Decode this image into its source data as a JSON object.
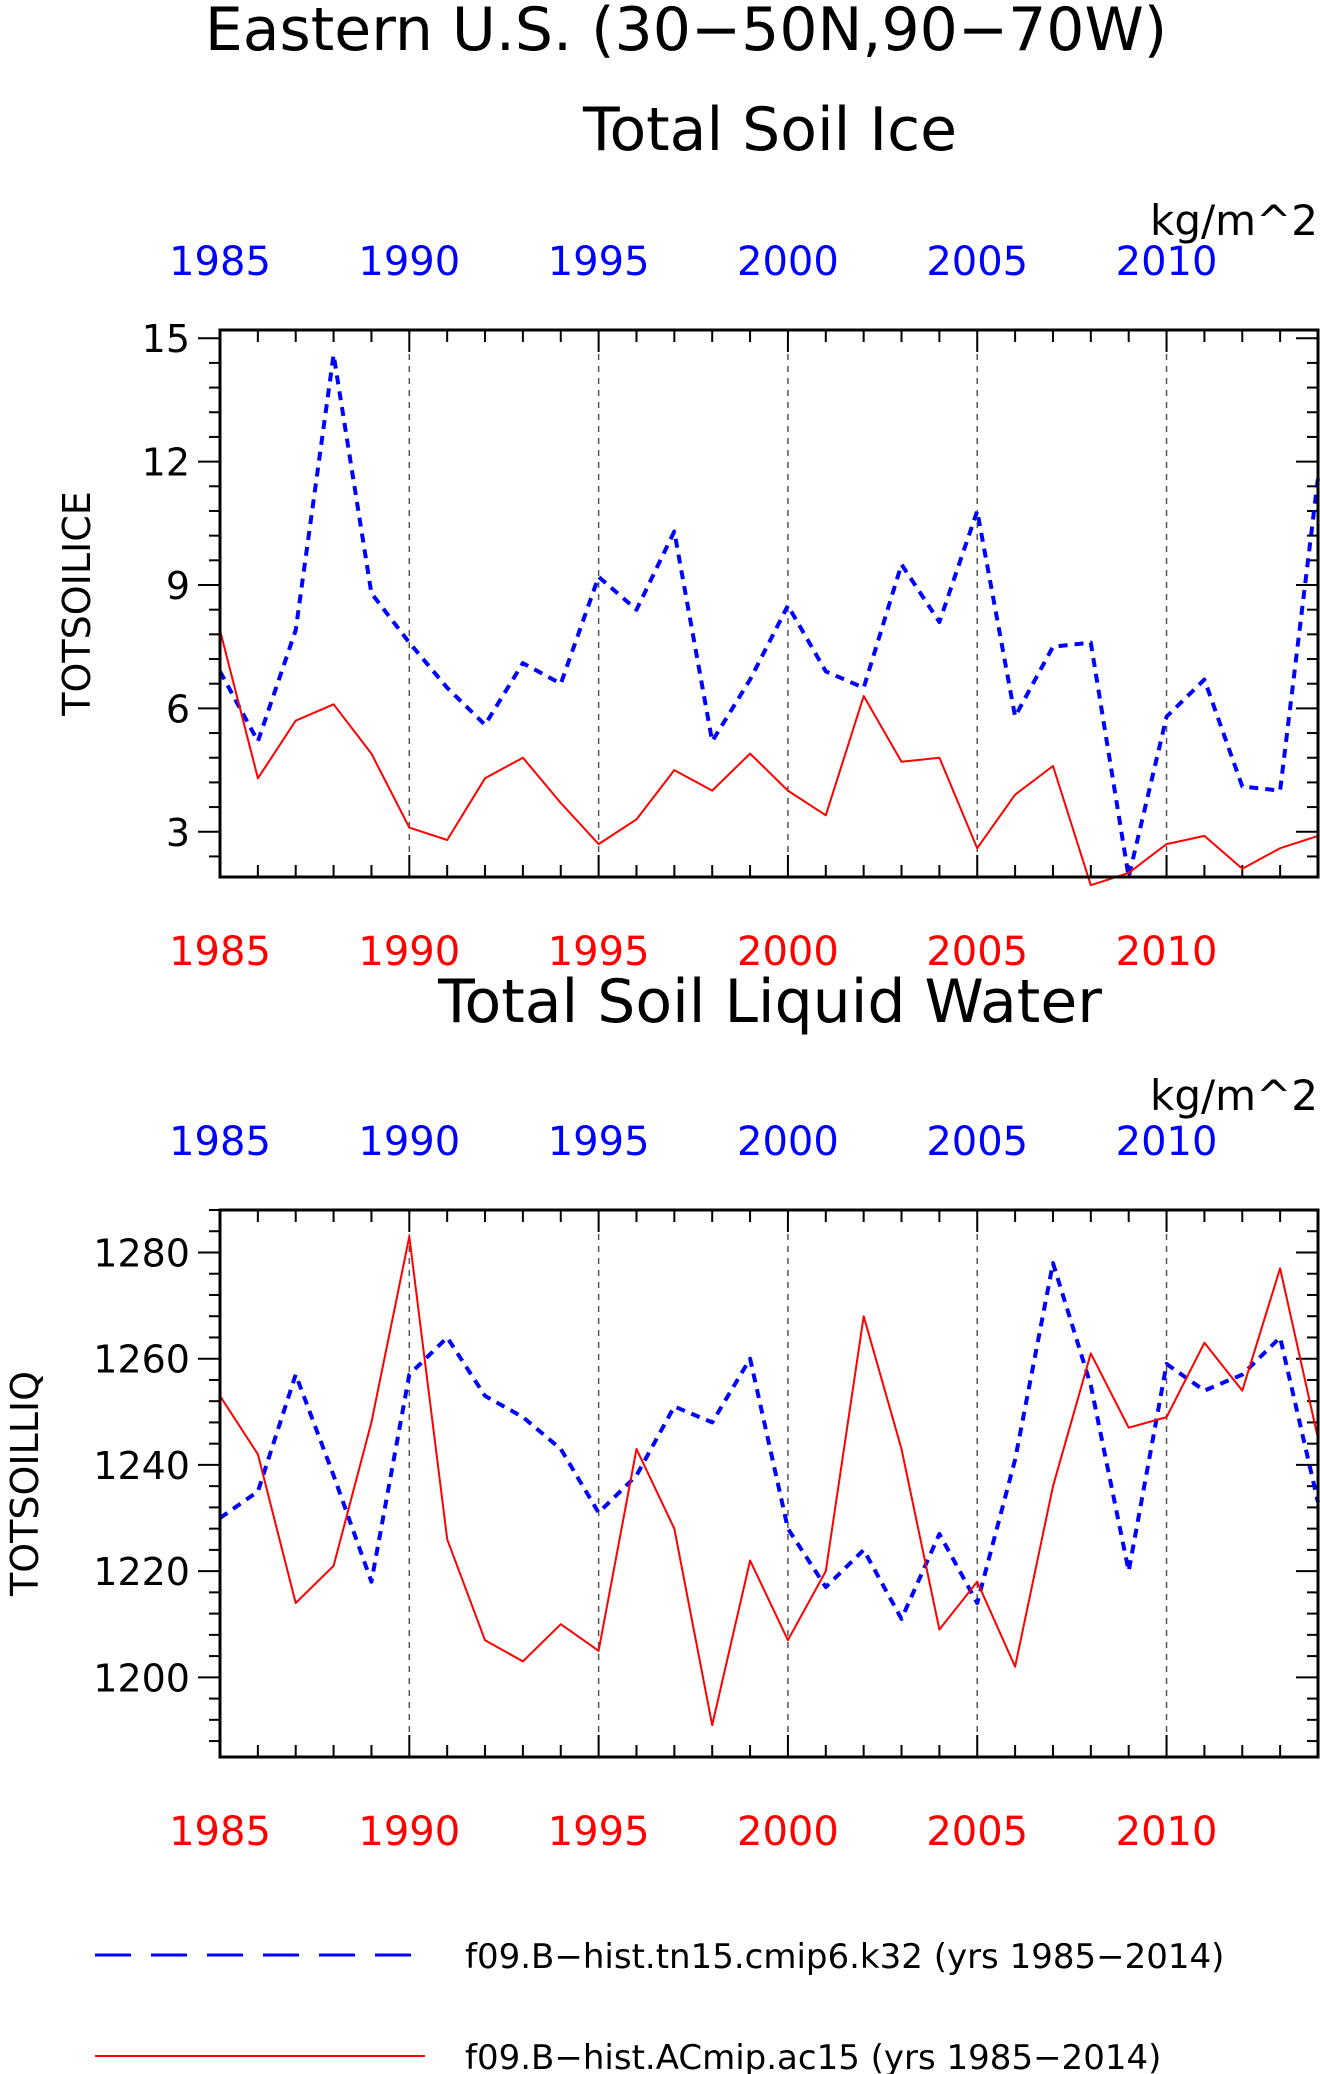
{
  "page": {
    "title": "Eastern U.S. (30−50N,90−70W)"
  },
  "colors": {
    "series_a": "#0000ff",
    "series_b": "#ff0000",
    "axis": "#000000",
    "grid": "#555555"
  },
  "legend": {
    "items": [
      {
        "label": "f09.B−hist.tn15.cmip6.k32 (yrs 1985−2014)",
        "style": "dashed",
        "color": "#0000ff"
      },
      {
        "label": "f09.B−hist.ACmip.ac15 (yrs 1985−2014)",
        "style": "solid",
        "color": "#ff0000"
      }
    ]
  },
  "chart_data": [
    {
      "type": "line",
      "title": "Total Soil Ice",
      "ylabel": "TOTSOILICE",
      "units": "kg/m^2",
      "xlim": [
        1985,
        2014
      ],
      "ylim": [
        1.9,
        15.2
      ],
      "yticks": [
        3,
        6,
        9,
        12,
        15
      ],
      "ytick_labels": [
        "3",
        "6",
        "9",
        "12",
        "15"
      ],
      "xticks": [
        1985,
        1990,
        1995,
        2000,
        2005,
        2010
      ],
      "xtick_labels": [
        "1985",
        "1990",
        "1995",
        "2000",
        "2005",
        "2010"
      ],
      "grid": "vertical dashed at 1990, 1995, 2000, 2005, 2010",
      "x": [
        1985,
        1986,
        1987,
        1988,
        1989,
        1990,
        1991,
        1992,
        1993,
        1994,
        1995,
        1996,
        1997,
        1998,
        1999,
        2000,
        2001,
        2002,
        2003,
        2004,
        2005,
        2006,
        2007,
        2008,
        2009,
        2010,
        2011,
        2012,
        2013,
        2014
      ],
      "series": [
        {
          "values": [
            6.9,
            5.2,
            7.9,
            14.6,
            8.8,
            7.6,
            6.5,
            5.6,
            7.1,
            6.6,
            9.2,
            8.4,
            10.3,
            5.2,
            6.7,
            8.5,
            6.9,
            6.5,
            9.5,
            8.1,
            10.8,
            5.8,
            7.5,
            7.6,
            1.9,
            5.8,
            6.7,
            4.1,
            4.0,
            11.6
          ]
        },
        {
          "values": [
            7.9,
            4.3,
            5.7,
            6.1,
            4.9,
            3.1,
            2.8,
            4.3,
            4.8,
            3.7,
            2.7,
            3.3,
            4.5,
            4.0,
            4.9,
            4.0,
            3.4,
            6.3,
            4.7,
            4.8,
            2.6,
            3.9,
            4.6,
            1.7,
            2.0,
            2.7,
            2.9,
            2.1,
            2.6,
            2.9
          ]
        }
      ]
    },
    {
      "type": "line",
      "title": "Total Soil Liquid Water",
      "ylabel": "TOTSOILLIQ",
      "units": "kg/m^2",
      "xlim": [
        1985,
        2014
      ],
      "ylim": [
        1185,
        1288
      ],
      "yticks": [
        1200,
        1220,
        1240,
        1260,
        1280
      ],
      "ytick_labels": [
        "1200",
        "1220",
        "1240",
        "1260",
        "1280"
      ],
      "xticks": [
        1985,
        1990,
        1995,
        2000,
        2005,
        2010
      ],
      "xtick_labels": [
        "1985",
        "1990",
        "1995",
        "2000",
        "2005",
        "2010"
      ],
      "grid": "vertical dashed at 1990, 1995, 2000, 2005, 2010",
      "x": [
        1985,
        1986,
        1987,
        1988,
        1989,
        1990,
        1991,
        1992,
        1993,
        1994,
        1995,
        1996,
        1997,
        1998,
        1999,
        2000,
        2001,
        2002,
        2003,
        2004,
        2005,
        2006,
        2007,
        2008,
        2009,
        2010,
        2011,
        2012,
        2013,
        2014
      ],
      "series": [
        {
          "values": [
            1230,
            1235,
            1257,
            1238,
            1218,
            1257,
            1264,
            1253,
            1249,
            1243,
            1231,
            1238,
            1251,
            1248,
            1260,
            1228,
            1217,
            1224,
            1211,
            1227,
            1214,
            1241,
            1278,
            1255,
            1220,
            1259,
            1254,
            1257,
            1264,
            1233
          ]
        },
        {
          "values": [
            1253,
            1242,
            1214,
            1221,
            1248,
            1283,
            1226,
            1207,
            1203,
            1210,
            1205,
            1243,
            1228,
            1191,
            1222,
            1207,
            1220,
            1268,
            1243,
            1209,
            1218,
            1202,
            1236,
            1261,
            1247,
            1249,
            1263,
            1254,
            1277,
            1245
          ]
        }
      ]
    }
  ]
}
